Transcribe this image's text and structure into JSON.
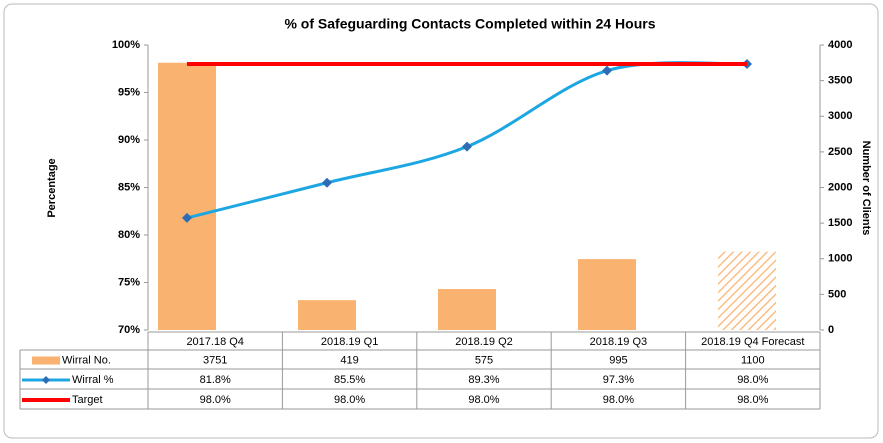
{
  "chart_data": {
    "type": "bar_line",
    "title": "% of Safeguarding Contacts Completed within 24 Hours",
    "ylabel": "Percentage",
    "y2label": "Number of Clients",
    "categories": [
      "2017.18 Q4",
      "2018.19 Q1",
      "2018.19 Q2",
      "2018.19 Q3",
      "2018.19 Q4 Forecast"
    ],
    "series": [
      {
        "name": "Wirral No.",
        "type": "bar",
        "axis": "y2",
        "color": "#f9b26f",
        "hatched": [
          false,
          false,
          false,
          false,
          true
        ],
        "values": [
          3751,
          419,
          575,
          995,
          1100
        ]
      },
      {
        "name": "Wirral %",
        "type": "line",
        "color": "#1ca7e2",
        "marker_color": "#2e6db5",
        "values": [
          81.8,
          85.5,
          89.3,
          97.3,
          98.0
        ],
        "value_labels": [
          "81.8%",
          "85.5%",
          "89.3%",
          "97.3%",
          "98.0%"
        ]
      },
      {
        "name": "Target",
        "type": "line",
        "color": "#ff0000",
        "values": [
          98.0,
          98.0,
          98.0,
          98.0,
          98.0
        ],
        "value_labels": [
          "98.0%",
          "98.0%",
          "98.0%",
          "98.0%",
          "98.0%"
        ]
      }
    ],
    "ylim": [
      70,
      100
    ],
    "yticks": [
      {
        "value": 70,
        "label": "70%"
      },
      {
        "value": 75,
        "label": "75%"
      },
      {
        "value": 80,
        "label": "80%"
      },
      {
        "value": 85,
        "label": "85%"
      },
      {
        "value": 90,
        "label": "90%"
      },
      {
        "value": 95,
        "label": "95%"
      },
      {
        "value": 100,
        "label": "100%"
      }
    ],
    "y2lim": [
      0,
      4000
    ],
    "y2ticks": [
      0,
      500,
      1000,
      1500,
      2000,
      2500,
      3000,
      3500,
      4000
    ]
  }
}
